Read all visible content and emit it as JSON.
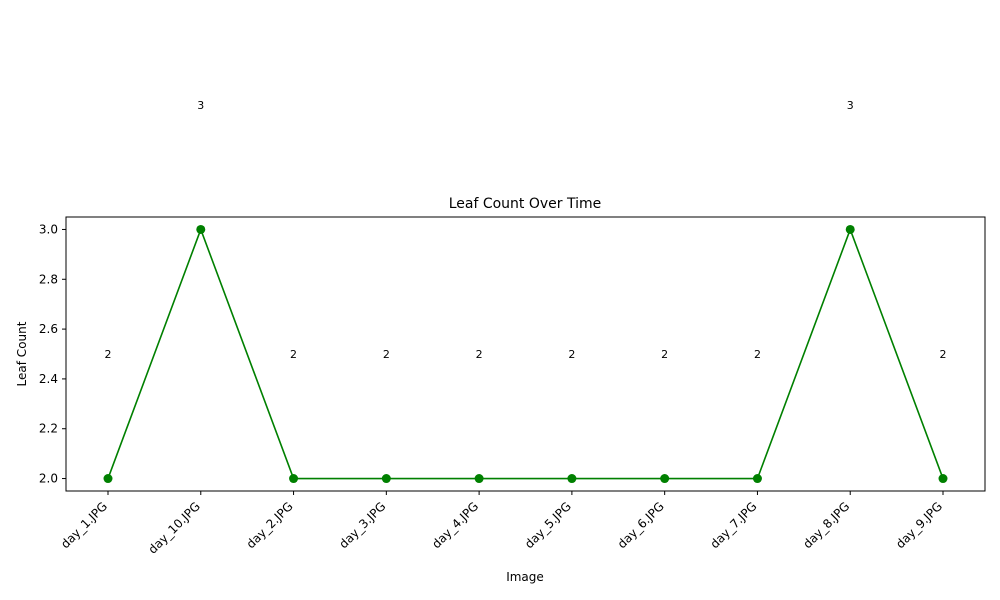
{
  "chart_data": {
    "type": "line",
    "title": "Leaf Count Over Time",
    "xlabel": "Image",
    "ylabel": "Leaf Count",
    "categories": [
      "day_1.JPG",
      "day_10.JPG",
      "day_2.JPG",
      "day_3.JPG",
      "day_4.JPG",
      "day_5.JPG",
      "day_6.JPG",
      "day_7.JPG",
      "day_8.JPG",
      "day_9.JPG"
    ],
    "values": [
      2,
      3,
      2,
      2,
      2,
      2,
      2,
      2,
      3,
      2
    ],
    "data_labels": [
      "2",
      "3",
      "2",
      "2",
      "2",
      "2",
      "2",
      "2",
      "3",
      "2"
    ],
    "ylim": [
      1.95,
      3.05
    ],
    "yticks": [
      2.0,
      2.2,
      2.4,
      2.6,
      2.8,
      3.0
    ],
    "ytick_labels": [
      "2.0",
      "2.2",
      "2.4",
      "2.6",
      "2.8",
      "3.0"
    ],
    "line_color": "#008000",
    "grid": false,
    "legend": "none"
  }
}
